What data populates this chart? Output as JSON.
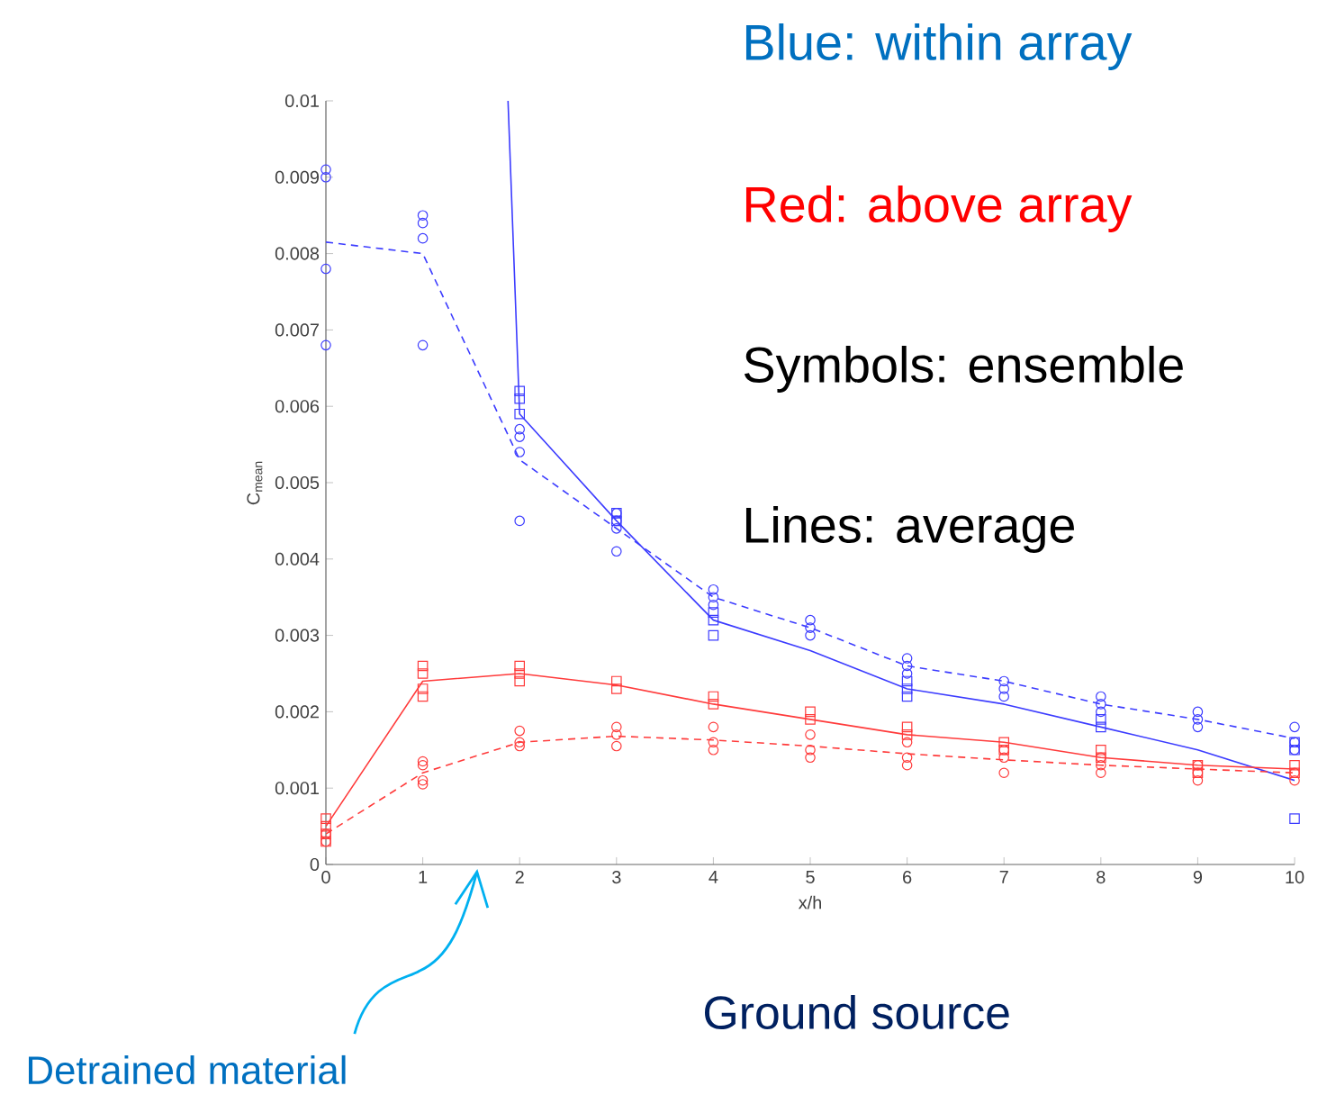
{
  "chart_data": {
    "type": "line",
    "xlabel": "x/h",
    "ylabel": "C$_{mean}$",
    "xlim": [
      0,
      10
    ],
    "xticks": [
      0,
      1,
      2,
      3,
      4,
      5,
      6,
      7,
      8,
      9,
      10
    ],
    "ylim": [
      0,
      0.01
    ],
    "yticks": [
      0,
      0.001,
      0.002,
      0.003,
      0.004,
      0.005,
      0.006,
      0.007,
      0.008,
      0.009,
      0.01
    ],
    "annotations": [
      "Blue: within array",
      "Red: above array",
      "Symbols: ensemble",
      "Lines: average",
      "Ground source",
      "Detrained material"
    ],
    "series": [
      {
        "color": "#3c3cff",
        "line_style": "solid",
        "marker": "none",
        "x": [
          1.88,
          2,
          3,
          4,
          5,
          6,
          7,
          8,
          9,
          10
        ],
        "values": [
          0.01,
          0.0059,
          0.0045,
          0.0032,
          0.0028,
          0.0023,
          0.0021,
          0.0018,
          0.0015,
          0.0011
        ]
      },
      {
        "color": "#3c3cff",
        "line_style": "dashed",
        "marker": "none",
        "x": [
          0,
          1,
          2,
          3,
          4,
          5,
          6,
          7,
          8,
          9,
          10
        ],
        "values": [
          0.00815,
          0.008,
          0.0053,
          0.0044,
          0.0035,
          0.0031,
          0.0026,
          0.0024,
          0.0021,
          0.0019,
          0.00165
        ]
      },
      {
        "color": "#ff3b3b",
        "line_style": "solid",
        "marker": "none",
        "x": [
          0,
          1,
          2,
          3,
          4,
          5,
          6,
          7,
          8,
          9,
          10
        ],
        "values": [
          0.0005,
          0.0024,
          0.0025,
          0.00235,
          0.0021,
          0.0019,
          0.0017,
          0.0016,
          0.0014,
          0.0013,
          0.00125
        ]
      },
      {
        "color": "#ff3b3b",
        "line_style": "dashed",
        "marker": "none",
        "x": [
          0,
          1,
          2,
          3,
          4,
          5,
          6,
          7,
          8,
          9,
          10
        ],
        "values": [
          0.0004,
          0.0012,
          0.0016,
          0.00168,
          0.00163,
          0.00155,
          0.00145,
          0.00137,
          0.0013,
          0.00125,
          0.0012
        ]
      },
      {
        "type": "scatter",
        "color": "#3c3cff",
        "marker": "circle",
        "x": [
          0,
          0,
          0,
          0,
          1,
          1,
          1,
          1,
          2,
          2,
          2,
          2,
          3,
          3,
          3,
          3,
          4,
          4,
          4,
          5,
          5,
          5,
          6,
          6,
          6,
          7,
          7,
          7,
          8,
          8,
          8,
          9,
          9,
          9,
          10,
          10,
          10
        ],
        "values": [
          0.0091,
          0.009,
          0.0078,
          0.0068,
          0.0085,
          0.0084,
          0.0082,
          0.0068,
          0.0057,
          0.0056,
          0.0054,
          0.0045,
          0.0046,
          0.0045,
          0.0044,
          0.0041,
          0.0036,
          0.0035,
          0.0034,
          0.0032,
          0.0031,
          0.003,
          0.0027,
          0.0026,
          0.0025,
          0.0024,
          0.0023,
          0.0022,
          0.0022,
          0.0021,
          0.002,
          0.002,
          0.0019,
          0.0018,
          0.0018,
          0.0016,
          0.0015
        ]
      },
      {
        "type": "scatter",
        "color": "#3c3cff",
        "marker": "square",
        "x": [
          2,
          2,
          2,
          3,
          3,
          4,
          4,
          4,
          6,
          6,
          6,
          8,
          8,
          10,
          10,
          10
        ],
        "values": [
          0.0062,
          0.0061,
          0.0059,
          0.0046,
          0.0045,
          0.0033,
          0.0032,
          0.003,
          0.0024,
          0.0023,
          0.0022,
          0.0019,
          0.0018,
          0.0016,
          0.0015,
          0.0006
        ]
      },
      {
        "type": "scatter",
        "color": "#ff3b3b",
        "marker": "square",
        "x": [
          0,
          0,
          0,
          0,
          1,
          1,
          1,
          1,
          2,
          2,
          2,
          3,
          3,
          4,
          4,
          5,
          5,
          6,
          6,
          7,
          7,
          8,
          8,
          9,
          9,
          10,
          10
        ],
        "values": [
          0.0006,
          0.0005,
          0.0004,
          0.0003,
          0.0026,
          0.0025,
          0.0023,
          0.0022,
          0.0026,
          0.0025,
          0.0024,
          0.0024,
          0.0023,
          0.0022,
          0.0021,
          0.002,
          0.0019,
          0.0018,
          0.0017,
          0.0016,
          0.0015,
          0.0015,
          0.0014,
          0.0013,
          0.0012,
          0.0013,
          0.0012
        ]
      },
      {
        "type": "scatter",
        "color": "#ff3b3b",
        "marker": "circle",
        "x": [
          0,
          0,
          1,
          1,
          1,
          1,
          2,
          2,
          2,
          3,
          3,
          3,
          4,
          4,
          4,
          5,
          5,
          5,
          6,
          6,
          6,
          7,
          7,
          7,
          8,
          8,
          8,
          9,
          9,
          9,
          10,
          10
        ],
        "values": [
          0.0004,
          0.0003,
          0.00135,
          0.0013,
          0.0011,
          0.00105,
          0.00175,
          0.0016,
          0.00155,
          0.0018,
          0.0017,
          0.00155,
          0.0018,
          0.0016,
          0.0015,
          0.0017,
          0.0015,
          0.0014,
          0.0016,
          0.0014,
          0.0013,
          0.0015,
          0.0014,
          0.0012,
          0.0014,
          0.0013,
          0.0012,
          0.0013,
          0.0012,
          0.0011,
          0.0012,
          0.0011
        ]
      }
    ]
  }
}
